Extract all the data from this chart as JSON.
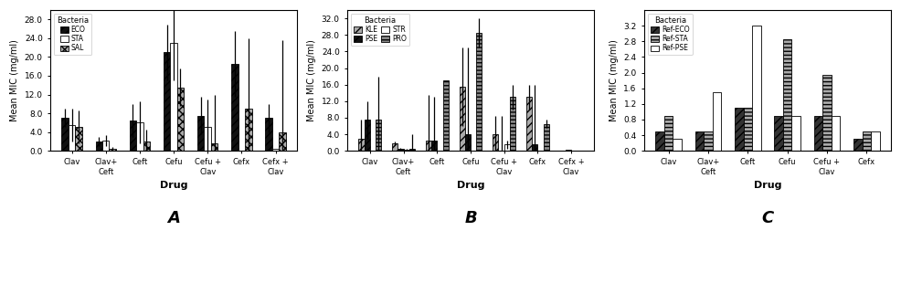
{
  "chartA": {
    "title": "A",
    "xlabel": "Drug",
    "ylabel": "Mean MIC (mg/ml)",
    "legend_title": "Bacteria",
    "categories": [
      "Clav",
      "Clav+\nCeft",
      "Ceft",
      "Cefu",
      "Cefu +\nClav",
      "Cefx",
      "Cefx +\nClav"
    ],
    "series": [
      {
        "label": "ECO",
        "hatch": "////",
        "facecolor": "#111111",
        "edgecolor": "black",
        "values": [
          7.0,
          2.0,
          6.5,
          21.0,
          7.5,
          18.5,
          7.0
        ],
        "errors": [
          2.0,
          1.0,
          3.5,
          6.0,
          4.0,
          7.0,
          3.0
        ]
      },
      {
        "label": "STA",
        "hatch": "",
        "facecolor": "white",
        "edgecolor": "black",
        "values": [
          5.5,
          2.2,
          6.0,
          23.0,
          5.0,
          0.0,
          0.5
        ],
        "errors": [
          3.5,
          1.2,
          4.5,
          8.0,
          6.0,
          0.0,
          0.0
        ]
      },
      {
        "label": "SAL",
        "hatch": "xxxx",
        "facecolor": "#aaaaaa",
        "edgecolor": "black",
        "values": [
          5.0,
          0.5,
          2.0,
          13.5,
          1.5,
          9.0,
          4.0
        ],
        "errors": [
          3.5,
          0.3,
          2.5,
          4.0,
          10.5,
          15.0,
          19.5
        ]
      }
    ],
    "ylim": [
      0,
      30
    ],
    "yticks": [
      0.0,
      4.0,
      8.0,
      12.0,
      16.0,
      20.0,
      24.0,
      28.0
    ],
    "yticklabels": [
      "0.0",
      "4.0",
      "8.0",
      "12.0",
      "16.0",
      "20.0",
      "24.0",
      "28.0"
    ]
  },
  "chartB": {
    "title": "B",
    "xlabel": "Drug",
    "ylabel": "Mean MIC (mg/ml)",
    "legend_title": "Bacteria",
    "categories": [
      "Clav",
      "Clav+\nCeft",
      "Ceft",
      "Cefu",
      "Cefu +\nClav",
      "Cefx",
      "Cefx +\nClav"
    ],
    "series": [
      {
        "label": "KLE",
        "hatch": "////",
        "facecolor": "#aaaaaa",
        "edgecolor": "black",
        "values": [
          3.0,
          1.8,
          2.5,
          15.5,
          4.0,
          13.0,
          0.0
        ],
        "errors": [
          4.5,
          0.5,
          11.0,
          9.5,
          4.5,
          3.0,
          0.0
        ]
      },
      {
        "label": "PSE",
        "hatch": "////",
        "facecolor": "#111111",
        "edgecolor": "black",
        "values": [
          7.5,
          0.5,
          2.5,
          4.0,
          0.0,
          1.5,
          0.3
        ],
        "errors": [
          4.5,
          0.3,
          10.5,
          21.0,
          8.5,
          14.5,
          0.0
        ]
      },
      {
        "label": "STR",
        "hatch": "",
        "facecolor": "white",
        "edgecolor": "black",
        "values": [
          0.0,
          0.3,
          0.0,
          0.0,
          1.5,
          0.0,
          0.0
        ],
        "errors": [
          0.0,
          0.2,
          0.0,
          0.0,
          1.0,
          0.0,
          0.0
        ]
      },
      {
        "label": "PRO",
        "hatch": "----",
        "facecolor": "#888888",
        "edgecolor": "black",
        "values": [
          7.5,
          0.5,
          17.0,
          28.5,
          13.0,
          6.5,
          0.0
        ],
        "errors": [
          10.5,
          3.5,
          0.0,
          3.5,
          3.0,
          1.0,
          0.0
        ]
      }
    ],
    "ylim": [
      0,
      34
    ],
    "yticks": [
      0.0,
      4.0,
      8.0,
      12.0,
      16.0,
      20.0,
      24.0,
      28.0,
      32.0
    ],
    "yticklabels": [
      "0.0",
      "4.0",
      "8.0",
      "12.0",
      "16.0",
      "20.0",
      "24.0",
      "28.0",
      "32.0"
    ]
  },
  "chartC": {
    "title": "C",
    "xlabel": "Drug",
    "ylabel": "Mean MIC (mg/ml)",
    "legend_title": "Bacteria",
    "categories": [
      "Clav",
      "Clav+\nCeft",
      "Ceft",
      "Cefu",
      "Cefu +\nClav",
      "Cefx"
    ],
    "series": [
      {
        "label": "Ref-ECO",
        "hatch": "////",
        "facecolor": "#333333",
        "edgecolor": "black",
        "values": [
          0.5,
          0.5,
          1.1,
          0.9,
          0.9,
          0.3
        ],
        "errors": [
          0.0,
          0.0,
          0.0,
          0.0,
          0.0,
          0.0
        ]
      },
      {
        "label": "Ref-STA",
        "hatch": "----",
        "facecolor": "#aaaaaa",
        "edgecolor": "black",
        "values": [
          0.9,
          0.5,
          1.1,
          2.85,
          1.95,
          0.5
        ],
        "errors": [
          0.0,
          0.0,
          0.0,
          0.0,
          0.0,
          0.0
        ]
      },
      {
        "label": "Ref-PSE",
        "hatch": "",
        "facecolor": "white",
        "edgecolor": "black",
        "values": [
          0.3,
          1.5,
          3.2,
          0.9,
          0.9,
          0.5
        ],
        "errors": [
          0.0,
          0.0,
          0.0,
          0.0,
          0.0,
          0.0
        ]
      }
    ],
    "ylim": [
      0,
      3.6
    ],
    "yticks": [
      0.0,
      0.4,
      0.8,
      1.2,
      1.6,
      2.0,
      2.4,
      2.8,
      3.2
    ],
    "yticklabels": [
      "0.0",
      "0.4",
      "0.8",
      "1.2",
      "1.6",
      "2.0",
      "2.4",
      "2.8",
      "3.2"
    ]
  }
}
